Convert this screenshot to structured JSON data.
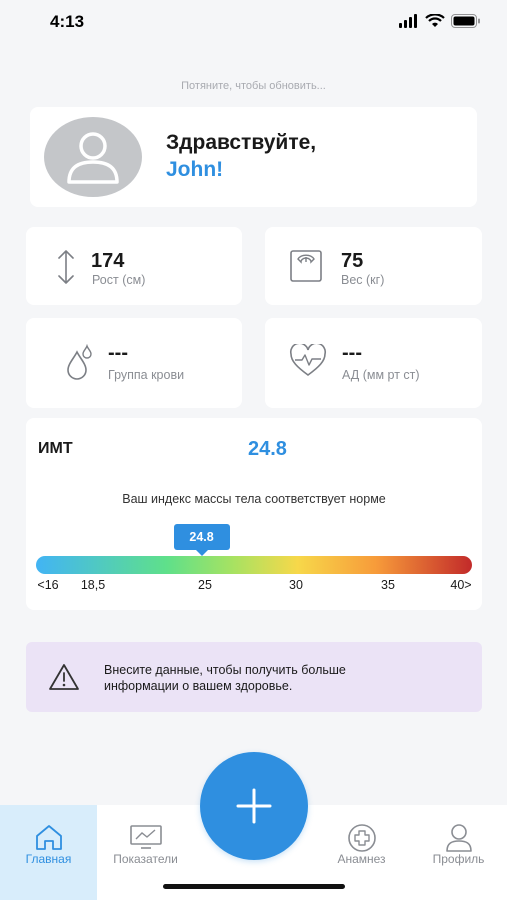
{
  "status_bar": {
    "time": "4:13"
  },
  "pull_hint": "Потяните, чтобы обновить...",
  "greeting": {
    "line1": "Здравствуйте,",
    "name": "John!"
  },
  "stats": {
    "height": {
      "value": "174",
      "label": "Рост (см)",
      "icon": "height-arrows-icon"
    },
    "weight": {
      "value": "75",
      "label": "Вес (кг)",
      "icon": "scale-icon"
    },
    "blood_group": {
      "value": "---",
      "label": "Группа крови",
      "icon": "blood-drop-icon"
    },
    "blood_pressure": {
      "value": "---",
      "label": "АД (мм рт ст)",
      "icon": "heart-pulse-icon"
    }
  },
  "bmi": {
    "title": "ИМТ",
    "value": "24.8",
    "description": "Ваш индекс массы тела соответствует норме",
    "marker_label": "24.8",
    "marker_value": 24.8,
    "scale_min": 16,
    "scale_max": 40,
    "ticks": [
      {
        "label": "<16",
        "value": 16
      },
      {
        "label": "18,5",
        "value": 18.5
      },
      {
        "label": "25",
        "value": 25
      },
      {
        "label": "30",
        "value": 30
      },
      {
        "label": "35",
        "value": 35
      },
      {
        "label": "40>",
        "value": 40
      }
    ]
  },
  "info_banner": {
    "text_line1": "Внесите данные, чтобы получить больше",
    "text_line2": "информации о вашем здоровье."
  },
  "tabs": [
    {
      "label": "Главная",
      "icon": "home-icon",
      "active": true
    },
    {
      "label": "Показатели",
      "icon": "chart-monitor-icon",
      "active": false
    },
    {
      "label": "Анамнез",
      "icon": "medical-cross-icon",
      "active": false
    },
    {
      "label": "Профиль",
      "icon": "profile-icon",
      "active": false
    }
  ],
  "fab": {
    "icon": "plus-icon"
  },
  "colors": {
    "accent": "#2f8fe0",
    "banner": "#ebe3f6",
    "active_tab": "#d8edfb"
  }
}
